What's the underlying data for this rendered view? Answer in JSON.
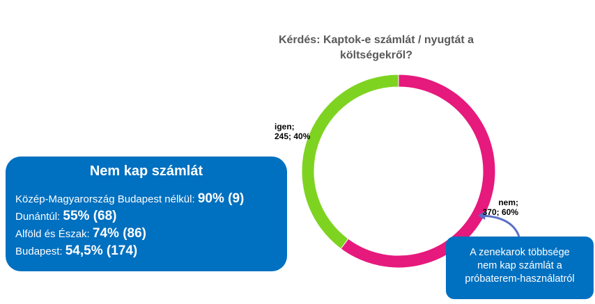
{
  "chart_data": {
    "type": "pie",
    "variant": "donut",
    "title": "Kérdés: Kaptok-e számlát / nyugtát a költségekről?",
    "title_lines": [
      "Kérdés: Kaptok-e számlát / nyugtát a",
      "költségekről?"
    ],
    "slices": [
      {
        "label": "nem",
        "value": 370,
        "percent": 60,
        "color": "#e6197d",
        "label_lines": [
          "nem;",
          "370; 60%"
        ]
      },
      {
        "label": "igen",
        "value": 245,
        "percent": 40,
        "color": "#7ed321",
        "label_lines": [
          "igen;",
          "245; 40%"
        ]
      }
    ]
  },
  "summary_box": {
    "title": "Nem kap számlát",
    "rows": [
      {
        "region": "Közép-Magyarország Budapest nélkül: ",
        "value": "90% (9)"
      },
      {
        "region": "Dunántúl: ",
        "value": "55% (68)"
      },
      {
        "region": "Alföld és Észak: ",
        "value": "74% (86)"
      },
      {
        "region": "Budapest: ",
        "value": "54,5% (174)"
      }
    ]
  },
  "callout": {
    "lines": [
      "A zenekarok többsége",
      "nem kap számlát a",
      "próbaterem-használatról"
    ]
  },
  "colors": {
    "box": "#0070c0",
    "arrow": "#5b6fc7"
  }
}
